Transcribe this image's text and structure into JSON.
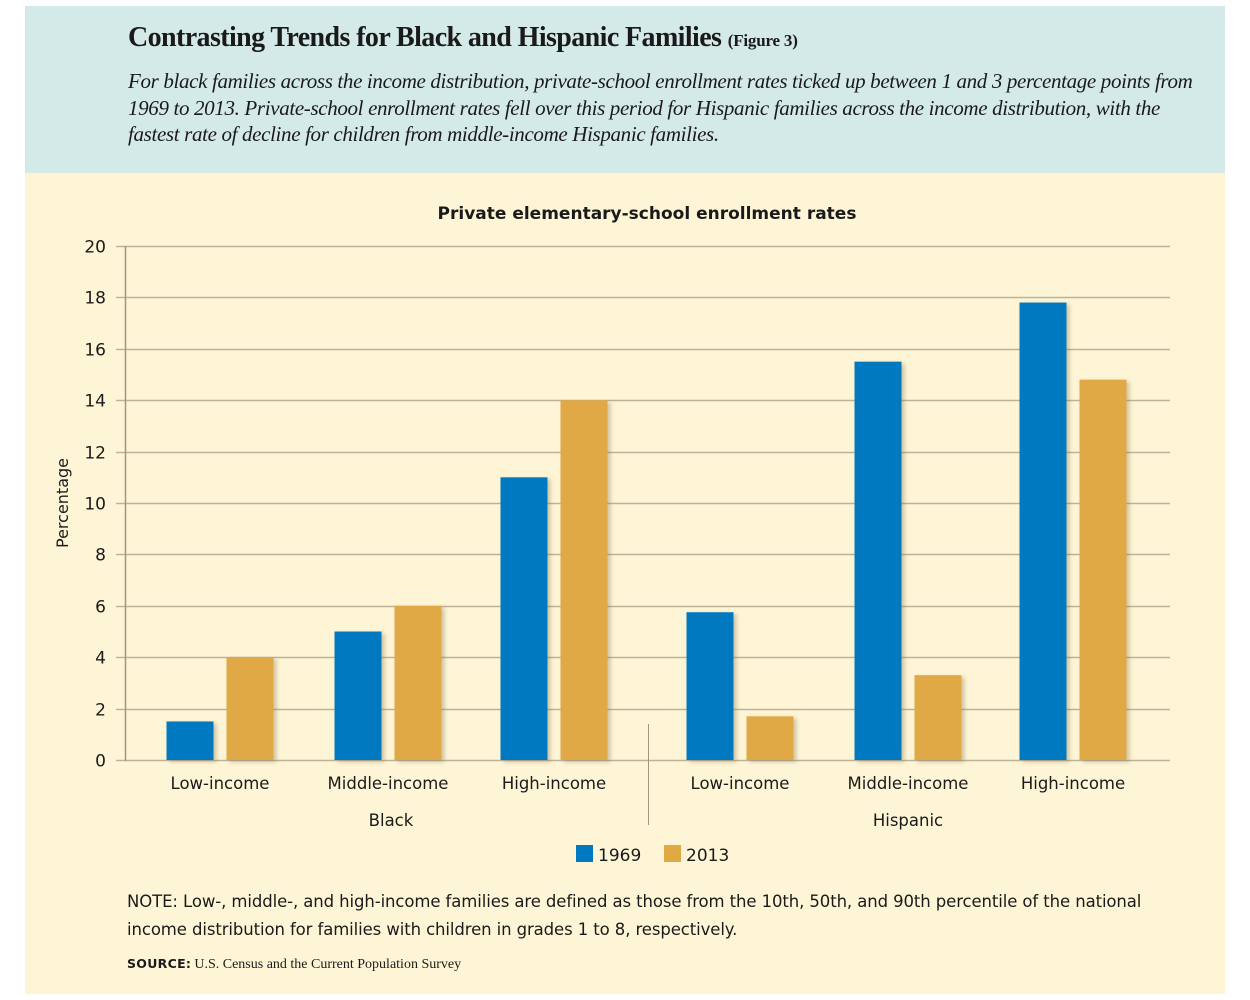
{
  "header": {
    "title": "Contrasting Trends for Black and Hispanic Families",
    "figure_label": "(Figure 3)",
    "subtitle": "For black families across the income distribution, private-school enrollment rates ticked up between 1 and 3 percentage points from 1969 to 2013. Private-school enrollment rates fell over this period for Hispanic families across the income distribution, with the fastest rate of decline for children from middle-income Hispanic families."
  },
  "colors": {
    "header_bg": "#d4eae8",
    "panel_bg": "#fef5d6",
    "series_1969": "#0079c1",
    "series_2013": "#e0a944",
    "grid": "#bdb39b"
  },
  "chart_data": {
    "type": "bar",
    "title": "Private elementary-school enrollment rates",
    "xlabel": "",
    "ylabel": "Percentage",
    "ylim": [
      0,
      20
    ],
    "yticks": [
      0,
      2,
      4,
      6,
      8,
      10,
      12,
      14,
      16,
      18,
      20
    ],
    "grid": true,
    "legend_position": "bottom-center",
    "groups": [
      {
        "name": "Black",
        "categories": [
          "Low-income",
          "Middle-income",
          "High-income"
        ]
      },
      {
        "name": "Hispanic",
        "categories": [
          "Low-income",
          "Middle-income",
          "High-income"
        ]
      }
    ],
    "categories": [
      "Low-income",
      "Middle-income",
      "High-income",
      "Low-income",
      "Middle-income",
      "High-income"
    ],
    "series": [
      {
        "name": "1969",
        "values": [
          1.5,
          5.0,
          11.0,
          5.75,
          15.5,
          17.8
        ]
      },
      {
        "name": "2013",
        "values": [
          4.0,
          6.0,
          14.0,
          1.7,
          3.3,
          14.8
        ]
      }
    ]
  },
  "footer": {
    "note": "NOTE: Low-, middle-, and high-income families are defined as those from the 10th, 50th, and 90th percentile of the national income distribution for families with children in grades 1 to 8, respectively.",
    "source_label": "SOURCE:",
    "source_text": "U.S. Census and the Current Population Survey"
  }
}
